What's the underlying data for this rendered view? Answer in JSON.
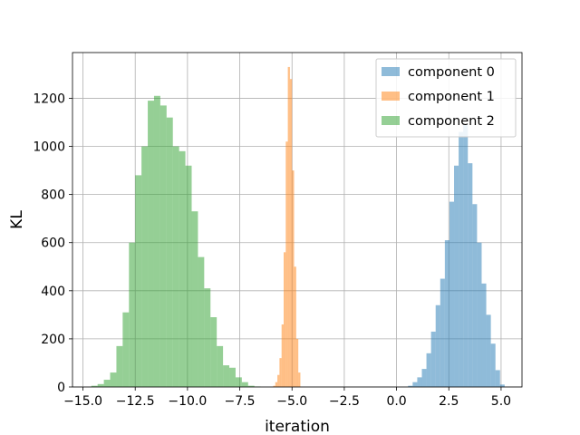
{
  "chart_data": {
    "type": "histogram",
    "title": "",
    "xlabel": "iteration",
    "ylabel": "KL",
    "xlim": [
      -15.5,
      6.0
    ],
    "ylim": [
      0,
      1390
    ],
    "xticks": [
      -15.0,
      -12.5,
      -10.0,
      -7.5,
      -5.0,
      -2.5,
      0.0,
      2.5,
      5.0
    ],
    "xtick_labels": [
      "−15.0",
      "−12.5",
      "−10.0",
      "−7.5",
      "−5.0",
      "−2.5",
      "0.0",
      "2.5",
      "5.0"
    ],
    "yticks": [
      0,
      200,
      400,
      600,
      800,
      1000,
      1200
    ],
    "ytick_labels": [
      "0",
      "200",
      "400",
      "600",
      "800",
      "1000",
      "1200"
    ],
    "grid": true,
    "legend_position": "top-right",
    "series": [
      {
        "name": "component 0",
        "color": "#1f77b4",
        "alpha": 0.5,
        "bin_edges": [
          0.55,
          0.77,
          0.99,
          1.21,
          1.43,
          1.65,
          1.87,
          2.09,
          2.31,
          2.53,
          2.75,
          2.97,
          3.19,
          3.41,
          3.63,
          3.85,
          4.07,
          4.29,
          4.51,
          4.73,
          4.95,
          5.17
        ],
        "counts": [
          5,
          20,
          40,
          75,
          140,
          230,
          340,
          450,
          610,
          770,
          920,
          1060,
          1090,
          930,
          760,
          600,
          430,
          300,
          180,
          70,
          10
        ]
      },
      {
        "name": "component 1",
        "color": "#ff7f0e",
        "alpha": 0.5,
        "bin_edges": [
          -5.9,
          -5.8,
          -5.7,
          -5.6,
          -5.5,
          -5.4,
          -5.3,
          -5.2,
          -5.1,
          -5.0,
          -4.9,
          -4.8,
          -4.7,
          -4.6
        ],
        "counts": [
          5,
          20,
          50,
          120,
          260,
          560,
          1020,
          1330,
          1280,
          900,
          500,
          200,
          60
        ]
      },
      {
        "name": "component 2",
        "color": "#2ca02c",
        "alpha": 0.5,
        "bin_edges": [
          -14.6,
          -14.3,
          -14.0,
          -13.7,
          -13.4,
          -13.1,
          -12.8,
          -12.5,
          -12.2,
          -11.9,
          -11.6,
          -11.3,
          -11.0,
          -10.7,
          -10.4,
          -10.1,
          -9.8,
          -9.5,
          -9.2,
          -8.9,
          -8.6,
          -8.3,
          -8.0,
          -7.7,
          -7.4,
          -7.1,
          -6.8,
          -6.5
        ],
        "counts": [
          5,
          12,
          30,
          60,
          170,
          310,
          600,
          880,
          1000,
          1190,
          1210,
          1170,
          1120,
          1000,
          980,
          920,
          730,
          540,
          410,
          290,
          170,
          90,
          80,
          40,
          20,
          5,
          2
        ]
      }
    ]
  }
}
